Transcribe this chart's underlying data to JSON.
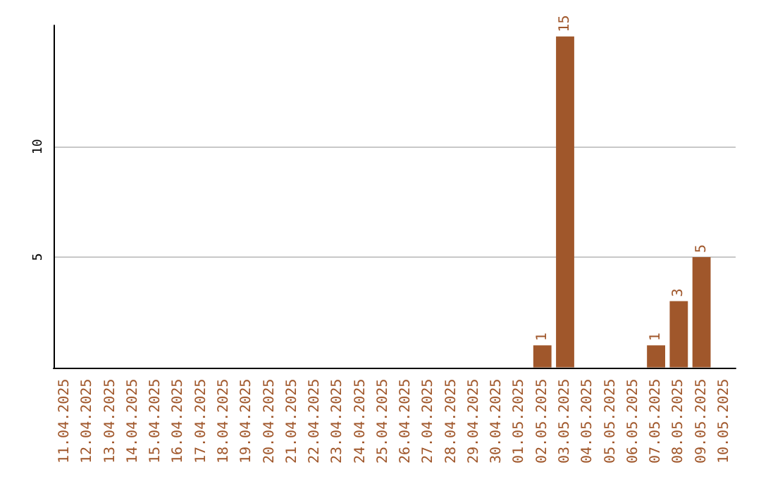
{
  "chart_data": {
    "type": "bar",
    "categories": [
      "11.04.2025",
      "12.04.2025",
      "13.04.2025",
      "14.04.2025",
      "15.04.2025",
      "16.04.2025",
      "17.04.2025",
      "18.04.2025",
      "19.04.2025",
      "20.04.2025",
      "21.04.2025",
      "22.04.2025",
      "23.04.2025",
      "24.04.2025",
      "25.04.2025",
      "26.04.2025",
      "27.04.2025",
      "28.04.2025",
      "29.04.2025",
      "30.04.2025",
      "01.05.2025",
      "02.05.2025",
      "03.05.2025",
      "04.05.2025",
      "05.05.2025",
      "06.05.2025",
      "07.05.2025",
      "08.05.2025",
      "09.05.2025",
      "10.05.2025"
    ],
    "values": [
      0,
      0,
      0,
      0,
      0,
      0,
      0,
      0,
      0,
      0,
      0,
      0,
      0,
      0,
      0,
      0,
      0,
      0,
      0,
      0,
      0,
      1,
      15,
      0,
      0,
      0,
      1,
      3,
      5,
      0
    ],
    "value_labels": [
      null,
      null,
      null,
      null,
      null,
      null,
      null,
      null,
      null,
      null,
      null,
      null,
      null,
      null,
      null,
      null,
      null,
      null,
      null,
      null,
      null,
      "1",
      "15",
      null,
      null,
      null,
      "1",
      "3",
      "5",
      null
    ],
    "color": "#a0572b",
    "ylim": [
      0,
      15.5
    ],
    "yticks": [
      5,
      10
    ],
    "grid": "y"
  }
}
